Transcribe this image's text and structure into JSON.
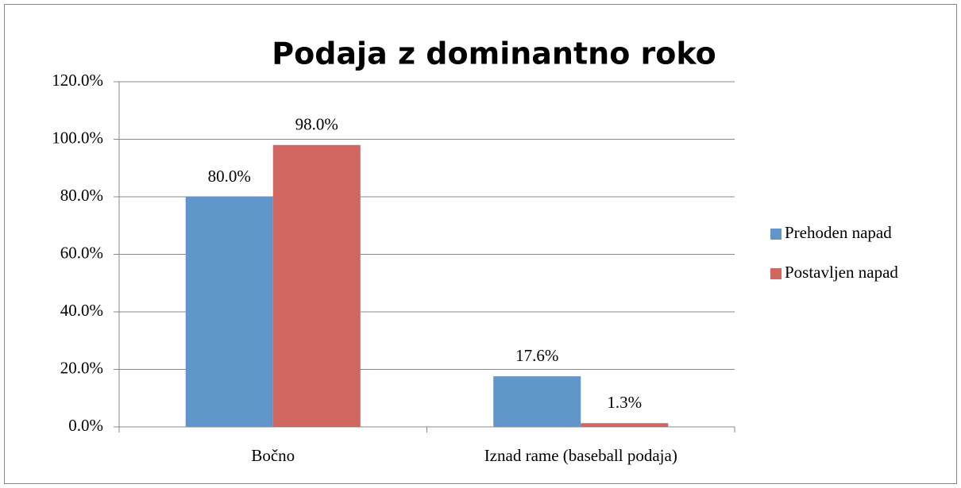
{
  "chart_data": {
    "type": "bar",
    "title": "Podaja z dominantno roko",
    "categories": [
      "Bočno",
      "Iznad rame (baseball podaja)"
    ],
    "series": [
      {
        "name": "Prehoden napad",
        "color": "#6096c9",
        "values": [
          80,
          17.6
        ],
        "value_labels": [
          "80.0%",
          "17.6%"
        ]
      },
      {
        "name": "Postavljen napad",
        "color": "#cf6660",
        "values": [
          98,
          1.3
        ],
        "value_labels": [
          "98.0%",
          "1.3%"
        ]
      }
    ],
    "ylim": [
      0,
      120
    ],
    "yticks": [
      {
        "value": 0,
        "label": "0.0%"
      },
      {
        "value": 20,
        "label": "20.0%"
      },
      {
        "value": 40,
        "label": "40.0%"
      },
      {
        "value": 60,
        "label": "60.0%"
      },
      {
        "value": 80,
        "label": "80.0%"
      },
      {
        "value": 100,
        "label": "100.0%"
      },
      {
        "value": 120,
        "label": "120.0%"
      }
    ],
    "grid": true,
    "legend": "right"
  }
}
